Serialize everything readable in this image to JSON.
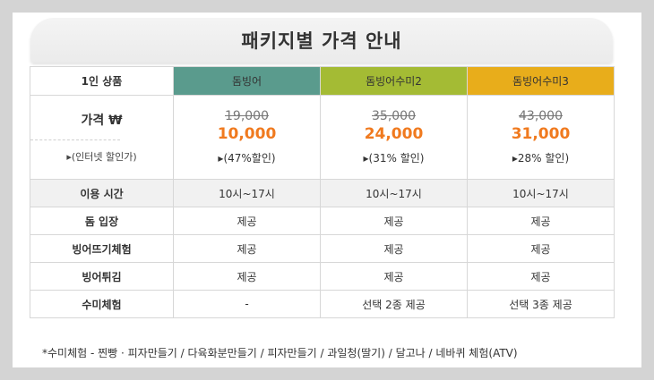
{
  "title": "패키지별 가격 안내",
  "header": {
    "label": "1인 상품",
    "packages": [
      "돔빙어",
      "돔빙어수미2",
      "돔빙어수미3"
    ],
    "colors": [
      "#5a9b8d",
      "#a4bb34",
      "#e8ad1b"
    ]
  },
  "price_label": "가격 ₩",
  "price_sublabel": "▸(인터넷 할인가)",
  "prices": [
    {
      "original": "19,000",
      "sale": "10,000",
      "discount": "▸(47%할인)"
    },
    {
      "original": "35,000",
      "sale": "24,000",
      "discount": "▸(31% 할인)"
    },
    {
      "original": "43,000",
      "sale": "31,000",
      "discount": "▸28% 할인)"
    }
  ],
  "rows": [
    {
      "label": "이용 시간",
      "values": [
        "10시~17시",
        "10시~17시",
        "10시~17시"
      ],
      "band": true
    },
    {
      "label": "돔 입장",
      "values": [
        "제공",
        "제공",
        "제공"
      ],
      "band": false
    },
    {
      "label": "빙어뜨기체험",
      "values": [
        "제공",
        "제공",
        "제공"
      ],
      "band": false
    },
    {
      "label": "빙어튀김",
      "values": [
        "제공",
        "제공",
        "제공"
      ],
      "band": false
    },
    {
      "label": "수미체험",
      "values": [
        "-",
        "선택 2종 제공",
        "선택 3종 제공"
      ],
      "band": false
    }
  ],
  "footnote": "*수미체험 - 찐빵 · 피자만들기 / 다육화분만들기 / 피자만들기 / 과일청(딸기) / 달고나 / 네바퀴 체험(ATV)"
}
